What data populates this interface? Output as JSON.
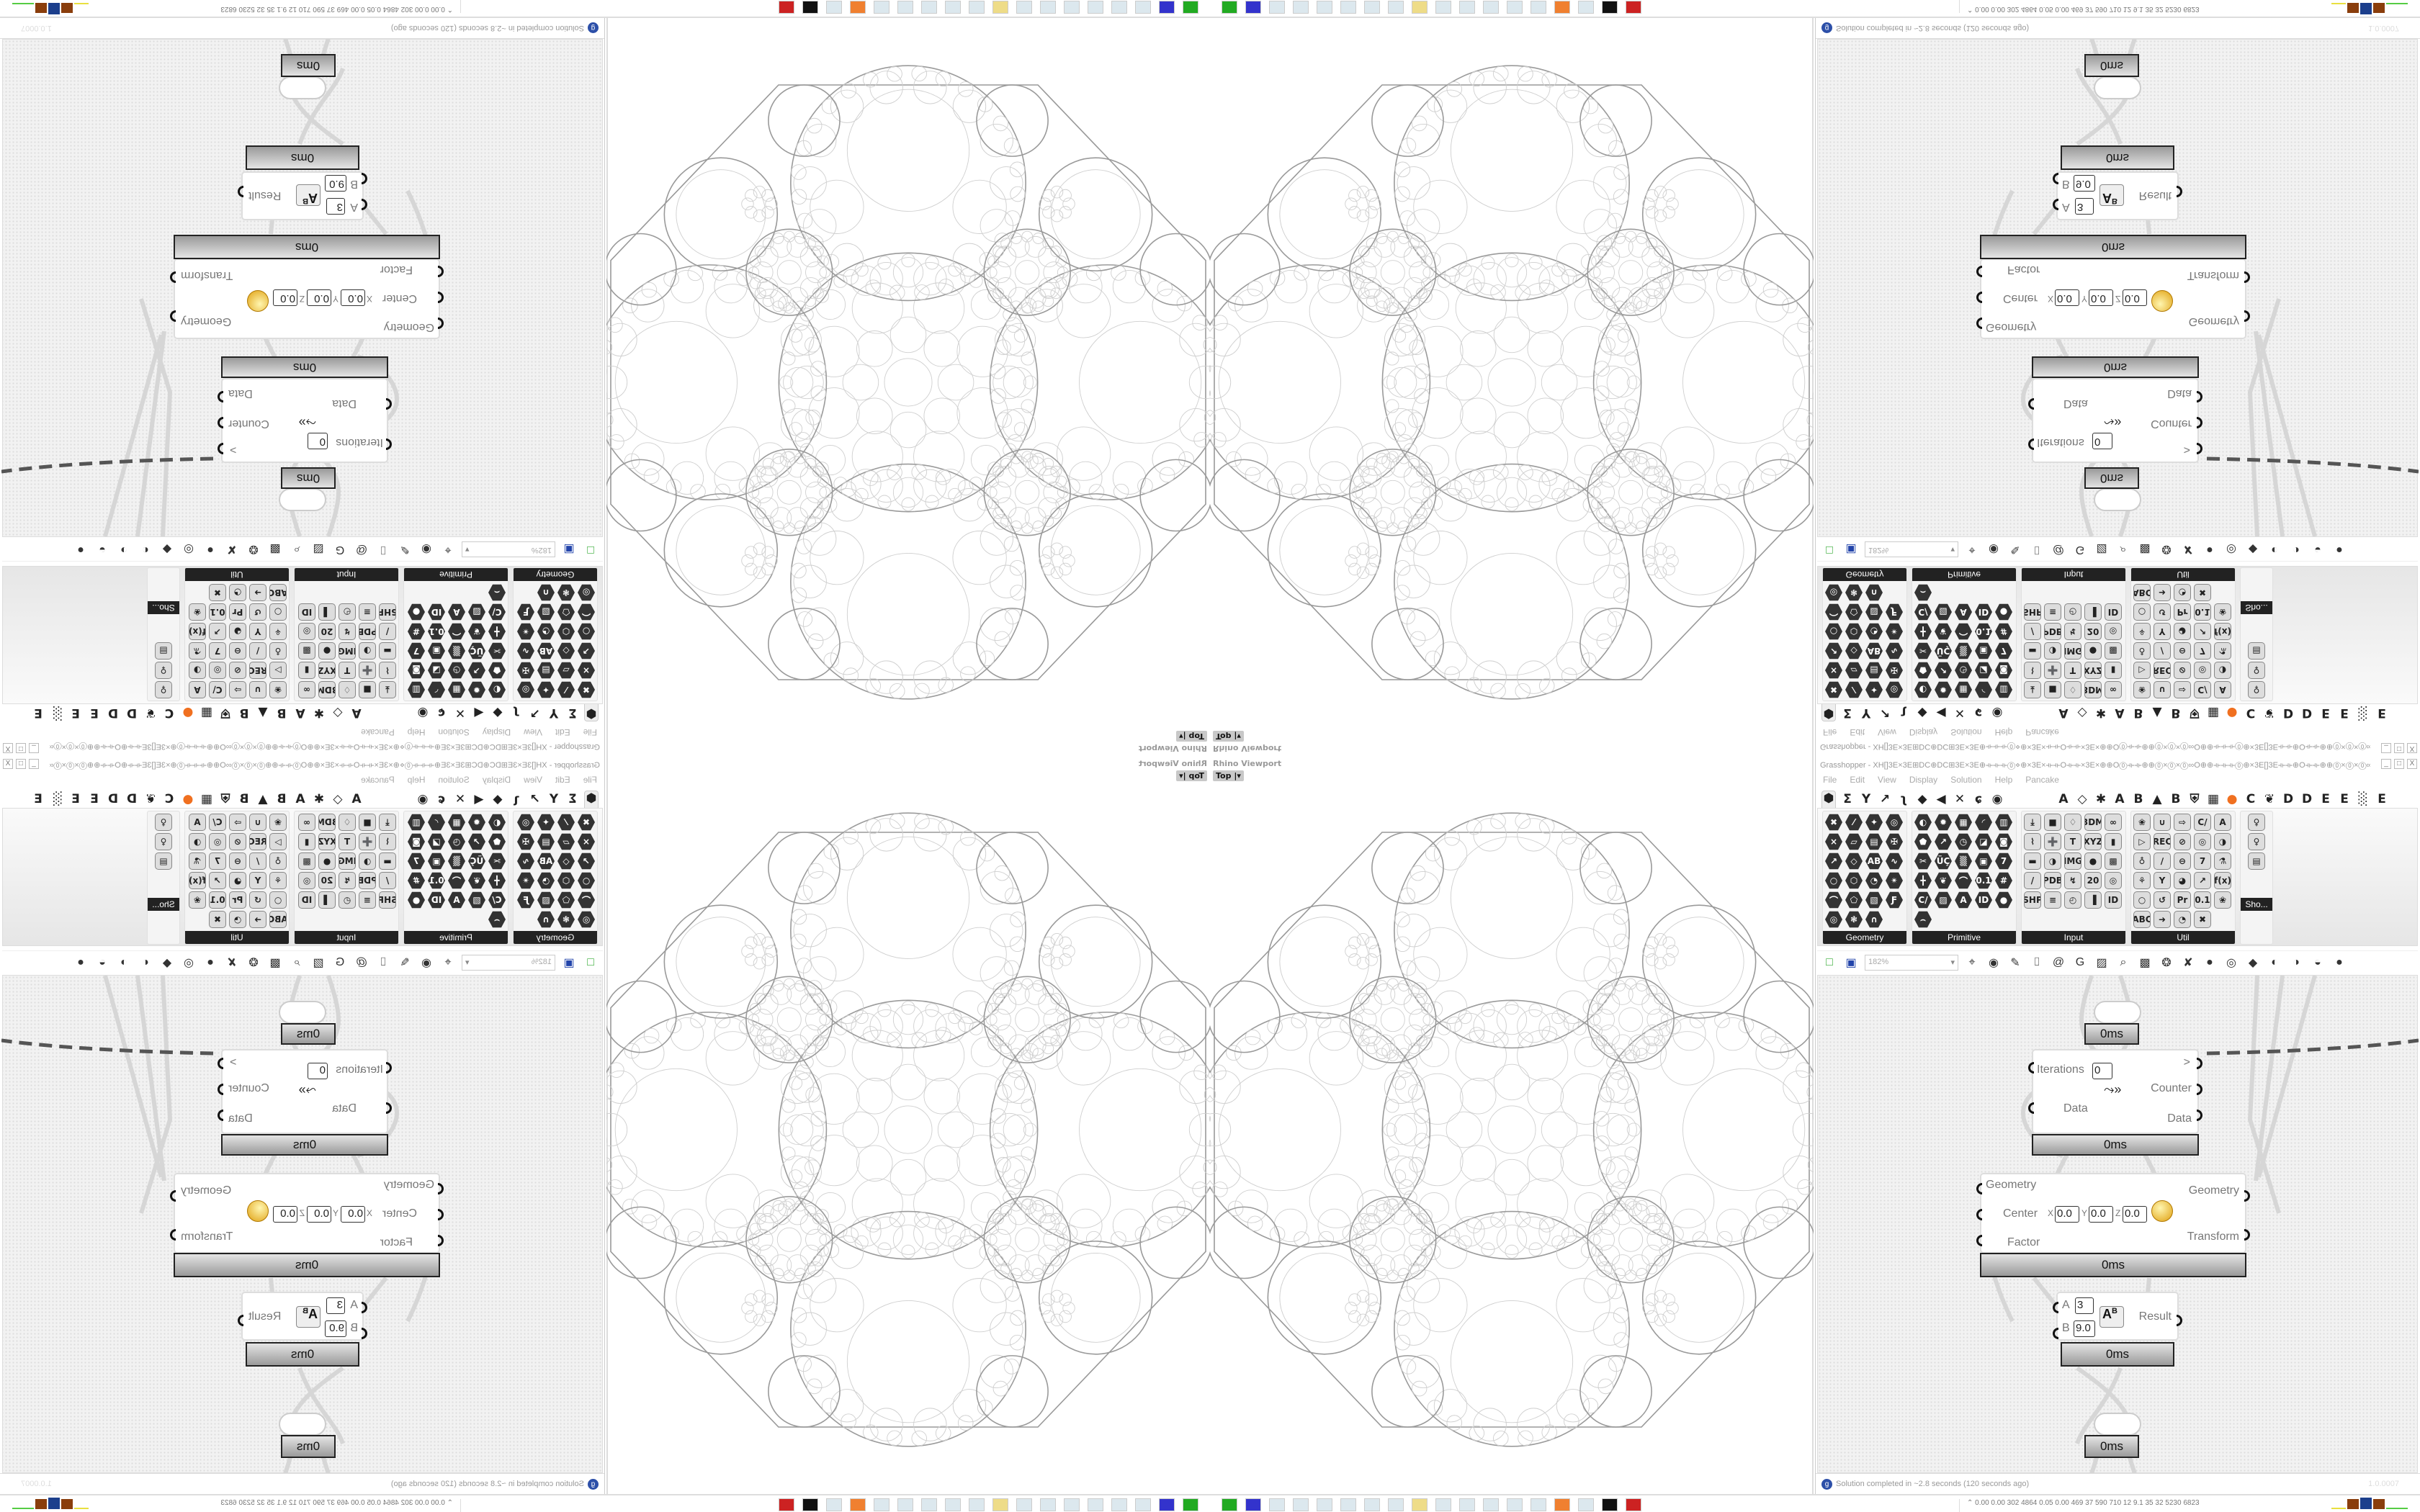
{
  "viewport": {
    "label": "Rhino Viewport",
    "view_button": "Top"
  },
  "grasshopper": {
    "title": "Grasshopper - XH[]3E×3E⊞DC⊕DC⊞3E×3E⊕⟛⟛⟛⓪⋄⊕×3E×⟛⟛O⟛⟛×3E×⊕⊕O⓪⟛⟛⊕⊕⓪×⓪×⓪∞O⊕⊕⟛⟛⟛⓪⊕×3E[]3E⟛⟛⊕O⟛⟛⊕⊕⓪×⓪×⓪∞O⊕⊕⟛⟛⟛⓪⋄⊕×3E⟛⟛⟛ O...",
    "window_buttons": [
      "_",
      "□",
      "X"
    ],
    "menu": [
      "File",
      "Edit",
      "View",
      "Display",
      "Solution",
      "Help",
      "Pancake"
    ],
    "tabs_left": [
      {
        "name": "params-tab",
        "glyph": "⬢"
      },
      {
        "name": "maths-tab",
        "glyph": "Σ"
      },
      {
        "name": "sets-tab",
        "glyph": "Y"
      },
      {
        "name": "vector-tab",
        "glyph": "↗"
      },
      {
        "name": "curve-tab",
        "glyph": "ʅ"
      },
      {
        "name": "surface-tab",
        "glyph": "◆"
      },
      {
        "name": "mesh-tab",
        "glyph": "◀"
      },
      {
        "name": "intersect-tab",
        "glyph": "✕"
      },
      {
        "name": "transform-tab",
        "glyph": "ɕ"
      },
      {
        "name": "display-tab",
        "glyph": "◉"
      }
    ],
    "tabs_right": [
      {
        "name": "tab-a",
        "glyph": "A"
      },
      {
        "name": "crystal-tab",
        "glyph": "◇"
      },
      {
        "name": "gear-tab",
        "glyph": "✱"
      },
      {
        "name": "tab-a2",
        "glyph": "A"
      },
      {
        "name": "tab-b",
        "glyph": "B"
      },
      {
        "name": "mountain-tab",
        "glyph": "▲"
      },
      {
        "name": "tab-b2",
        "glyph": "B"
      },
      {
        "name": "shield-tab",
        "glyph": "⛨"
      },
      {
        "name": "grid-tab",
        "glyph": "▦"
      },
      {
        "name": "orange-circle-tab",
        "glyph": "●"
      },
      {
        "name": "tab-c",
        "glyph": "C"
      },
      {
        "name": "rooster-tab",
        "glyph": "❦"
      },
      {
        "name": "tab-d",
        "glyph": "D"
      },
      {
        "name": "tab-d2",
        "glyph": "D"
      },
      {
        "name": "tab-e",
        "glyph": "E"
      },
      {
        "name": "tab-e2",
        "glyph": "E"
      },
      {
        "name": "dots-tab",
        "glyph": "░"
      },
      {
        "name": "tab-e3",
        "glyph": "E"
      }
    ],
    "ribbon_groups": [
      {
        "label": "Geometry",
        "icons": [
          "✖",
          "⁄",
          "✦",
          "◎",
          "×",
          "▱",
          "▤",
          "✠",
          "↗",
          "◇",
          "AB",
          "∿",
          "○",
          "⬡",
          "◔",
          "✴",
          "⌒",
          "⬠",
          "▧",
          "Ƒ",
          "◎",
          "❃",
          "∩"
        ],
        "square": false
      },
      {
        "label": "Primitive",
        "icons": [
          "◐",
          "✹",
          "▦",
          "◜",
          "▥",
          "⬟",
          "↗",
          "◷",
          "◪",
          "◙",
          "✂",
          "ÜÇ",
          "▒",
          "▣",
          "7",
          "╋",
          "❦",
          "⌒",
          "0.1",
          "#",
          "C/",
          "▨",
          "A",
          "ID",
          "●",
          "⌢"
        ],
        "square": false
      },
      {
        "label": "Input",
        "icons": [
          "⤓",
          "■",
          "♢",
          "3DM",
          "∞",
          "⌇",
          "➕",
          "T",
          "XYZ",
          "▮",
          "▬",
          "◑",
          "IMG",
          "●",
          "▩",
          "/",
          "PDB",
          "↯",
          "20",
          "◎",
          "SHP",
          "≡",
          "◴",
          "▐",
          "ID"
        ],
        "square": true
      },
      {
        "label": "Util",
        "icons": [
          "❀",
          "∪",
          "⇨",
          "C/",
          "A",
          "▷",
          "REC",
          "⊘",
          "◎",
          "◑",
          "♁",
          "∕",
          "⊖",
          "7",
          "⚗",
          "⚘",
          "Y",
          "◕",
          "↗",
          "f(x)",
          "○",
          "↺",
          "Pr",
          "0.1",
          "❀",
          "ABC",
          "➜",
          "◔",
          "✖"
        ],
        "square": true
      },
      {
        "label": "Sho...",
        "icons": [
          "♀",
          "♀",
          "▤"
        ],
        "square": true
      }
    ],
    "toolbar": {
      "zoom": "182%",
      "icons": [
        {
          "name": "new-file-icon",
          "glyph": "□"
        },
        {
          "name": "save-icon",
          "glyph": "▣"
        }
      ],
      "icons_after": [
        {
          "name": "zoom-extents-icon",
          "glyph": "⌖"
        },
        {
          "name": "preview-eye-icon",
          "glyph": "◉"
        },
        {
          "name": "sketch-icon",
          "glyph": "✎"
        },
        {
          "name": "cable-icon",
          "glyph": "⌷"
        },
        {
          "name": "at-icon",
          "glyph": "@"
        },
        {
          "name": "gha-icon",
          "glyph": "G"
        },
        {
          "name": "image-icon",
          "glyph": "▨"
        },
        {
          "name": "search-icon",
          "glyph": "⌕"
        },
        {
          "name": "package-icon",
          "glyph": "▩"
        },
        {
          "name": "bulb-icon",
          "glyph": "❂"
        },
        {
          "name": "dna-icon",
          "glyph": "✘"
        },
        {
          "name": "sphere-gray-icon",
          "glyph": "●"
        },
        {
          "name": "wire-icon",
          "glyph": "◎"
        },
        {
          "name": "red-gem-icon",
          "glyph": "◆"
        },
        {
          "name": "teal-shape-icon",
          "glyph": "◐"
        },
        {
          "name": "green-shape-icon",
          "glyph": "◑"
        },
        {
          "name": "orange-sphere-icon",
          "glyph": "◒"
        },
        {
          "name": "blue-sphere-icon",
          "glyph": "●"
        }
      ]
    },
    "components": {
      "top_timer": "0ms",
      "loop": {
        "iterations_label": "Iterations",
        "iterations_value": "0",
        "next_label": ">",
        "counter_label": "Counter",
        "data_in": "Data",
        "data_out": "Data",
        "timer": "0ms"
      },
      "scale": {
        "geometry_in": "Geometry",
        "center_label": "Center",
        "x_label": "X",
        "x": "0.0",
        "y_label": "Y",
        "y": "0.0",
        "z_label": "Z",
        "z": "0.0",
        "factor_label": "Factor",
        "geometry_out": "Geometry",
        "transform_out": "Transform",
        "timer": "0ms"
      },
      "power": {
        "a_label": "A",
        "a_value": "3",
        "b_label": "B",
        "b_value": "9.0",
        "result_label": "Result",
        "icon_text": "A",
        "icon_sup": "B",
        "timer": "0ms"
      },
      "bottom_timer": "0ms"
    },
    "status": "Solution completed in ~2.8 seconds (120 seconds ago)",
    "version": "1.0.0007"
  },
  "taskbar": {
    "icons": [
      "gpu-icon",
      "floppy-64-icon",
      "notepad-icon",
      "notepad-icon",
      "notepad-icon",
      "monitor-icon",
      "notepad-icon",
      "notepad-icon",
      "folder-icon",
      "control-panel-icon",
      "notepad-icon",
      "notepad-icon",
      "notepad-icon",
      "notepad-icon",
      "firefox-icon",
      "notepad-icon",
      "wolf-icon",
      "red-app-icon"
    ],
    "stats": "0.00 0.00 302 4864 0.05 0.00 469 37 590 710 12 9.1 35 32 5230 6823",
    "colors": {
      "accent_brown": "#8a3e0c",
      "accent_blue": "#1c3f8c",
      "accent_green": "#55cc44",
      "accent_yellow": "#e8e040"
    }
  }
}
